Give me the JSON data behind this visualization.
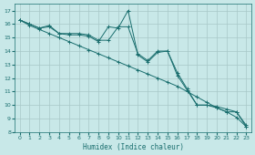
{
  "xlabel": "Humidex (Indice chaleur)",
  "background_color": "#c8e8e8",
  "grid_color": "#a8c8c8",
  "line_color": "#1a6e6e",
  "x": [
    0,
    1,
    2,
    3,
    4,
    5,
    6,
    7,
    8,
    9,
    10,
    11,
    12,
    13,
    14,
    15,
    16,
    17,
    18,
    19,
    20,
    21,
    22,
    23
  ],
  "y_smooth": [
    16.3,
    15.9,
    15.6,
    15.3,
    15.0,
    14.7,
    14.4,
    14.1,
    13.8,
    13.5,
    13.2,
    12.9,
    12.6,
    12.3,
    12.0,
    11.7,
    11.4,
    11.0,
    10.6,
    10.2,
    9.8,
    9.5,
    9.1,
    8.4
  ],
  "y_jagged": [
    16.3,
    16.0,
    15.7,
    15.8,
    15.3,
    15.2,
    15.2,
    15.1,
    14.7,
    15.8,
    15.7,
    17.0,
    13.7,
    13.2,
    13.9,
    14.0,
    12.2,
    11.1,
    10.0,
    10.0,
    9.8,
    9.5,
    9.5,
    8.4
  ],
  "y_mid": [
    16.3,
    16.0,
    15.7,
    15.9,
    15.3,
    15.3,
    15.3,
    15.2,
    14.8,
    14.8,
    15.8,
    15.8,
    13.8,
    13.3,
    14.0,
    14.0,
    12.4,
    11.2,
    10.0,
    10.0,
    9.9,
    9.7,
    9.5,
    8.5
  ],
  "ylim": [
    8,
    17.5
  ],
  "yticks": [
    8,
    9,
    10,
    11,
    12,
    13,
    14,
    15,
    16,
    17
  ],
  "xticks": [
    0,
    1,
    2,
    3,
    4,
    5,
    6,
    7,
    8,
    9,
    10,
    11,
    12,
    13,
    14,
    15,
    16,
    17,
    18,
    19,
    20,
    21,
    22,
    23
  ],
  "figw": 2.8,
  "figh": 1.7,
  "dpi": 100
}
